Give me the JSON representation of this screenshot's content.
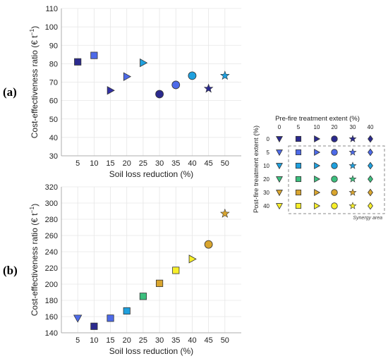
{
  "panels": {
    "a": "(a)",
    "b": "(b)"
  },
  "chart_data": [
    {
      "type": "scatter",
      "panel": "(a)",
      "xlabel": "Soil loss reduction (%)",
      "ylabel": "Cost-effectiveness ratio (€ t",
      "ylabel_sup": "−1",
      "ylabel_close": ")",
      "xlim": [
        0,
        55
      ],
      "ylim": [
        30,
        110
      ],
      "xticks": [
        5,
        10,
        15,
        20,
        25,
        30,
        35,
        40,
        45,
        50
      ],
      "yticks": [
        30,
        40,
        50,
        60,
        70,
        80,
        90,
        100,
        110
      ],
      "grid": true,
      "points": [
        {
          "x": 5,
          "y": 81,
          "marker": "square",
          "color": "#2b2a8e"
        },
        {
          "x": 10,
          "y": 84.5,
          "marker": "square",
          "color": "#4d6ae8"
        },
        {
          "x": 15,
          "y": 65.5,
          "marker": "tri-right",
          "color": "#3331a6"
        },
        {
          "x": 20,
          "y": 73,
          "marker": "tri-right",
          "color": "#4d6ae8"
        },
        {
          "x": 25,
          "y": 80.5,
          "marker": "tri-right",
          "color": "#1fa0de"
        },
        {
          "x": 30,
          "y": 63.5,
          "marker": "circle",
          "color": "#2b2a8e"
        },
        {
          "x": 35,
          "y": 68.5,
          "marker": "circle",
          "color": "#4d6ae8"
        },
        {
          "x": 40,
          "y": 73.5,
          "marker": "circle",
          "color": "#1fa0de"
        },
        {
          "x": 45,
          "y": 66.5,
          "marker": "star",
          "color": "#2b2a8e"
        },
        {
          "x": 50,
          "y": 73.5,
          "marker": "star",
          "color": "#1fa0de"
        }
      ]
    },
    {
      "type": "scatter",
      "panel": "(b)",
      "xlabel": "Soil loss reduction (%)",
      "ylabel": "Cost-effectiveness ratio (€ t",
      "ylabel_sup": "−1",
      "ylabel_close": ")",
      "xlim": [
        0,
        55
      ],
      "ylim": [
        140,
        320
      ],
      "xticks": [
        5,
        10,
        15,
        20,
        25,
        30,
        35,
        40,
        45,
        50
      ],
      "yticks": [
        140,
        160,
        180,
        200,
        220,
        240,
        260,
        280,
        300,
        320
      ],
      "grid": true,
      "points": [
        {
          "x": 5,
          "y": 158,
          "marker": "tri-down",
          "color": "#4d6ae8"
        },
        {
          "x": 10,
          "y": 148,
          "marker": "square",
          "color": "#2b2a8e"
        },
        {
          "x": 15,
          "y": 158,
          "marker": "square",
          "color": "#4d6ae8"
        },
        {
          "x": 20,
          "y": 167,
          "marker": "square",
          "color": "#1fa0de"
        },
        {
          "x": 25,
          "y": 185,
          "marker": "square",
          "color": "#3cbf7e"
        },
        {
          "x": 30,
          "y": 201,
          "marker": "square",
          "color": "#d9a52e"
        },
        {
          "x": 35,
          "y": 217,
          "marker": "square",
          "color": "#f7ef2a"
        },
        {
          "x": 40,
          "y": 231,
          "marker": "tri-right",
          "color": "#f7ef2a"
        },
        {
          "x": 45,
          "y": 249,
          "marker": "circle",
          "color": "#d9a52e"
        },
        {
          "x": 50,
          "y": 287,
          "marker": "star",
          "color": "#d9a52e"
        }
      ]
    }
  ],
  "legend": {
    "top_title": "Pre-fire treatment extent (%)",
    "side_title": "Post-fire treatment extent (%)",
    "columns": [
      "0",
      "5",
      "10",
      "20",
      "30",
      "40"
    ],
    "rows": [
      "0",
      "5",
      "10",
      "20",
      "30",
      "40"
    ],
    "column_markers": [
      "tri-down",
      "square",
      "tri-right",
      "circle",
      "star",
      "diamond"
    ],
    "row_colors": [
      "#2b2a8e",
      "#4d6ae8",
      "#1fa0de",
      "#3cbf7e",
      "#d9a52e",
      "#f7ef2a"
    ],
    "row0_markers": [
      "tri-down",
      "square",
      "tri-right",
      "circle",
      "star",
      "diamond"
    ],
    "synergy_label": "Synergy area"
  }
}
